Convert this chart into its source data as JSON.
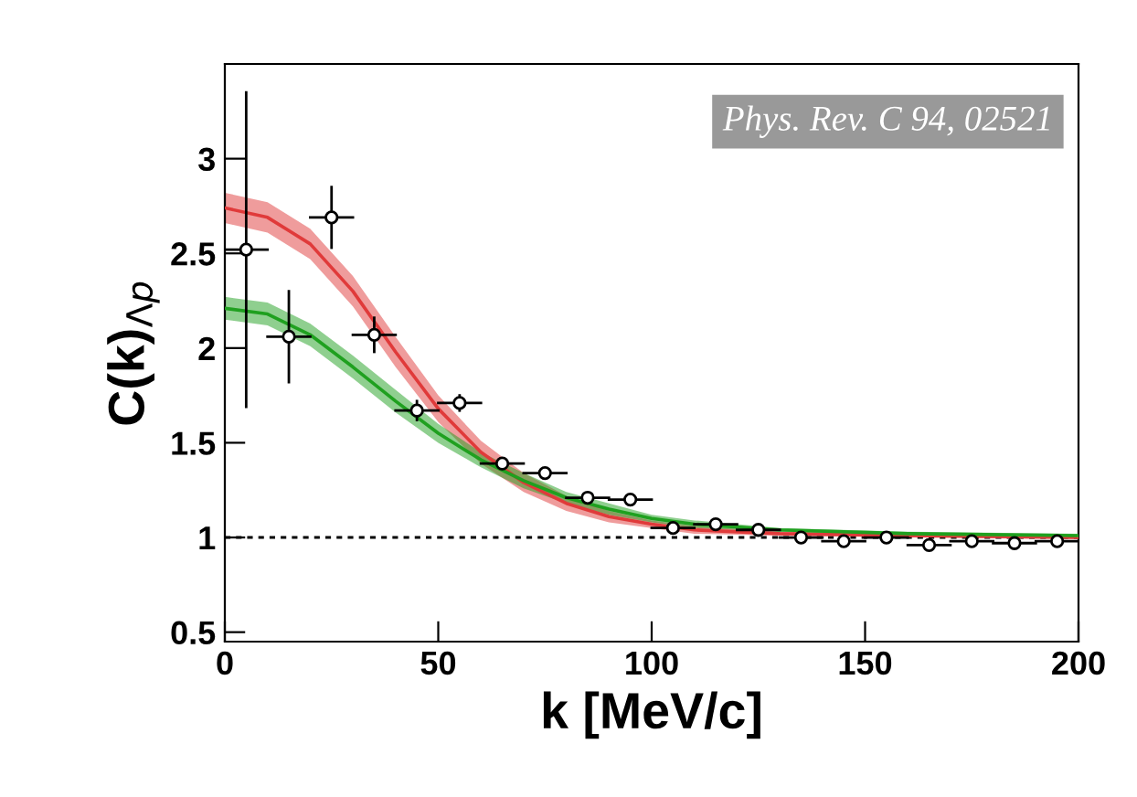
{
  "chart_data": {
    "type": "scatter",
    "xlabel": "k [MeV/c]",
    "ylabel": "C(k)$_{Λp}$",
    "xlim": [
      0,
      200
    ],
    "xticks": [
      0,
      50,
      100,
      150,
      200
    ],
    "ylim": [
      0.45,
      3.5
    ],
    "yticks": [
      0.5,
      1,
      1.5,
      2,
      2.5,
      3
    ],
    "annotations": [
      "Phys. Rev. C 94, 02521"
    ],
    "ref_lines": [
      {
        "axis": "y",
        "value": 1,
        "color": "#000000",
        "line_style": "dotted"
      }
    ],
    "series": [
      {
        "type": "line",
        "color": "#e03a3a",
        "x": [
          0,
          10,
          20,
          30,
          40,
          50,
          60,
          70,
          80,
          90,
          100,
          110,
          130,
          160,
          200
        ],
        "values": [
          2.74,
          2.69,
          2.55,
          2.3,
          1.98,
          1.68,
          1.45,
          1.29,
          1.18,
          1.11,
          1.07,
          1.04,
          1.02,
          1.01,
          1.0
        ],
        "lower": [
          2.66,
          2.61,
          2.47,
          2.22,
          1.9,
          1.61,
          1.39,
          1.24,
          1.14,
          1.08,
          1.05,
          1.02,
          1.01,
          1.0,
          0.99
        ],
        "upper": [
          2.82,
          2.77,
          2.63,
          2.38,
          2.06,
          1.75,
          1.51,
          1.34,
          1.22,
          1.14,
          1.09,
          1.06,
          1.03,
          1.02,
          1.01
        ]
      },
      {
        "type": "line",
        "color": "#1fa01f",
        "x": [
          0,
          10,
          20,
          30,
          40,
          50,
          60,
          70,
          80,
          90,
          100,
          110,
          130,
          160,
          200
        ],
        "values": [
          2.21,
          2.18,
          2.07,
          1.9,
          1.72,
          1.55,
          1.41,
          1.3,
          1.21,
          1.15,
          1.1,
          1.07,
          1.04,
          1.02,
          1.01
        ],
        "lower": [
          2.15,
          2.12,
          2.01,
          1.84,
          1.66,
          1.5,
          1.37,
          1.26,
          1.18,
          1.12,
          1.08,
          1.05,
          1.03,
          1.01,
          1.0
        ],
        "upper": [
          2.27,
          2.24,
          2.13,
          1.96,
          1.78,
          1.6,
          1.45,
          1.34,
          1.24,
          1.18,
          1.12,
          1.09,
          1.05,
          1.03,
          1.02
        ]
      },
      {
        "color": "#000000",
        "marker": "circle",
        "x": [
          5,
          15,
          25,
          35,
          45,
          55,
          65,
          75,
          85,
          95,
          105,
          115,
          125,
          135,
          145,
          155,
          165,
          175,
          185,
          195
        ],
        "values": [
          2.52,
          2.06,
          2.69,
          2.07,
          1.67,
          1.71,
          1.39,
          1.34,
          1.21,
          1.2,
          1.05,
          1.07,
          1.04,
          1.0,
          0.98,
          1.0,
          0.96,
          0.98,
          0.97,
          0.98
        ],
        "errors": [
          0.83,
          0.24,
          0.16,
          0.09,
          0.05,
          0.04,
          null,
          null,
          null,
          null,
          null,
          null,
          null,
          null,
          null,
          null,
          null,
          null,
          null,
          null
        ],
        "xerrors": [
          5,
          5,
          5,
          5,
          5,
          5,
          5,
          5,
          5,
          5,
          5,
          5,
          5,
          5,
          5,
          5,
          5,
          5,
          5,
          5
        ]
      }
    ]
  }
}
